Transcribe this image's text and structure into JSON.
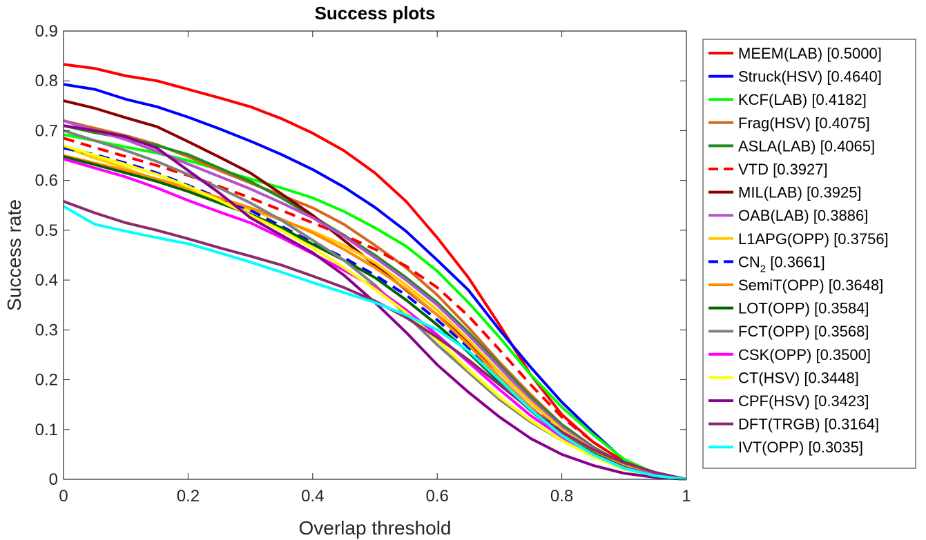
{
  "chart_data": {
    "type": "line",
    "title": "Success plots",
    "xlabel": "Overlap threshold",
    "ylabel": "Success rate",
    "xlim": [
      0,
      1
    ],
    "ylim": [
      0,
      0.9
    ],
    "xticks": [
      0,
      0.2,
      0.4,
      0.6,
      0.8,
      1
    ],
    "xtick_labels": [
      "0",
      "0.2",
      "0.4",
      "0.6",
      "0.8",
      "1"
    ],
    "yticks": [
      0,
      0.1,
      0.2,
      0.3,
      0.4,
      0.5,
      0.6,
      0.7,
      0.8,
      0.9
    ],
    "ytick_labels": [
      "0",
      "0.1",
      "0.2",
      "0.3",
      "0.4",
      "0.5",
      "0.6",
      "0.7",
      "0.8",
      "0.9"
    ],
    "grid": false,
    "legend_position": "outside-right",
    "x": [
      0,
      0.05,
      0.1,
      0.15,
      0.2,
      0.25,
      0.3,
      0.35,
      0.4,
      0.45,
      0.5,
      0.55,
      0.6,
      0.65,
      0.7,
      0.75,
      0.8,
      0.85,
      0.9,
      0.95,
      1
    ],
    "series": [
      {
        "name": "MEEM(LAB) [0.5000]",
        "color": "#ff0000",
        "dash": false,
        "values": [
          0.833,
          0.825,
          0.81,
          0.8,
          0.783,
          0.766,
          0.748,
          0.724,
          0.695,
          0.66,
          0.615,
          0.558,
          0.485,
          0.405,
          0.31,
          0.21,
          0.13,
          0.075,
          0.035,
          0.012,
          0
        ]
      },
      {
        "name": "Struck(HSV) [0.4640]",
        "color": "#0000ff",
        "dash": false,
        "values": [
          0.793,
          0.783,
          0.763,
          0.748,
          0.727,
          0.704,
          0.679,
          0.652,
          0.622,
          0.587,
          0.546,
          0.498,
          0.44,
          0.38,
          0.3,
          0.225,
          0.155,
          0.095,
          0.038,
          0.012,
          0
        ]
      },
      {
        "name": "KCF(LAB) [0.4182]",
        "color": "#00ff00",
        "dash": false,
        "values": [
          0.692,
          0.68,
          0.667,
          0.655,
          0.64,
          0.622,
          0.603,
          0.585,
          0.565,
          0.538,
          0.505,
          0.468,
          0.418,
          0.355,
          0.285,
          0.21,
          0.145,
          0.09,
          0.04,
          0.012,
          0
        ]
      },
      {
        "name": "Frag(HSV) [0.4075]",
        "color": "#d2691e",
        "dash": false,
        "values": [
          0.72,
          0.705,
          0.69,
          0.672,
          0.648,
          0.62,
          0.595,
          0.57,
          0.545,
          0.512,
          0.47,
          0.425,
          0.37,
          0.305,
          0.235,
          0.17,
          0.11,
          0.065,
          0.03,
          0.01,
          0
        ]
      },
      {
        "name": "ASLA(LAB) [0.4065]",
        "color": "#228b22",
        "dash": false,
        "values": [
          0.71,
          0.696,
          0.685,
          0.67,
          0.652,
          0.625,
          0.598,
          0.565,
          0.528,
          0.49,
          0.45,
          0.405,
          0.355,
          0.295,
          0.23,
          0.165,
          0.11,
          0.065,
          0.03,
          0.01,
          0
        ]
      },
      {
        "name": "VTD [0.3927]",
        "color": "#ff0000",
        "dash": true,
        "values": [
          0.685,
          0.666,
          0.648,
          0.63,
          0.61,
          0.588,
          0.565,
          0.54,
          0.515,
          0.49,
          0.462,
          0.428,
          0.385,
          0.328,
          0.26,
          0.19,
          0.125,
          0.075,
          0.035,
          0.012,
          0
        ]
      },
      {
        "name": "MIL(LAB) [0.3925]",
        "color": "#8b0000",
        "dash": false,
        "values": [
          0.76,
          0.745,
          0.726,
          0.708,
          0.678,
          0.647,
          0.615,
          0.573,
          0.53,
          0.48,
          0.43,
          0.38,
          0.33,
          0.275,
          0.215,
          0.155,
          0.1,
          0.06,
          0.028,
          0.01,
          0
        ]
      },
      {
        "name": "OAB(LAB) [0.3886]",
        "color": "#b452cd",
        "dash": false,
        "values": [
          0.72,
          0.7,
          0.682,
          0.658,
          0.633,
          0.608,
          0.583,
          0.555,
          0.525,
          0.488,
          0.445,
          0.4,
          0.35,
          0.29,
          0.225,
          0.16,
          0.105,
          0.062,
          0.03,
          0.01,
          0
        ]
      },
      {
        "name": "L1APG(OPP) [0.3756]",
        "color": "#ffcc00",
        "dash": false,
        "values": [
          0.668,
          0.645,
          0.625,
          0.6,
          0.58,
          0.56,
          0.54,
          0.52,
          0.498,
          0.47,
          0.435,
          0.39,
          0.34,
          0.28,
          0.215,
          0.155,
          0.1,
          0.06,
          0.028,
          0.01,
          0
        ]
      },
      {
        "name": "CN2 [0.3661]",
        "name_main": "CN",
        "name_sub": "2",
        "name_rest": " [0.3661]",
        "color": "#0000ff",
        "dash": true,
        "values": [
          0.665,
          0.652,
          0.635,
          0.615,
          0.59,
          0.565,
          0.54,
          0.508,
          0.475,
          0.445,
          0.41,
          0.37,
          0.32,
          0.265,
          0.205,
          0.145,
          0.095,
          0.055,
          0.025,
          0.008,
          0
        ]
      },
      {
        "name": "SemiT(OPP) [0.3648]",
        "color": "#ff8c00",
        "dash": false,
        "values": [
          0.65,
          0.635,
          0.62,
          0.603,
          0.585,
          0.565,
          0.545,
          0.522,
          0.495,
          0.462,
          0.425,
          0.382,
          0.33,
          0.27,
          0.205,
          0.145,
          0.092,
          0.055,
          0.025,
          0.008,
          0
        ]
      },
      {
        "name": "LOT(OPP) [0.3584]",
        "color": "#006400",
        "dash": false,
        "values": [
          0.648,
          0.632,
          0.615,
          0.598,
          0.578,
          0.555,
          0.532,
          0.505,
          0.472,
          0.44,
          0.405,
          0.36,
          0.31,
          0.255,
          0.195,
          0.138,
          0.088,
          0.052,
          0.024,
          0.008,
          0
        ]
      },
      {
        "name": "FCT(OPP) [0.3568]",
        "color": "#808080",
        "dash": false,
        "values": [
          0.7,
          0.68,
          0.66,
          0.638,
          0.612,
          0.585,
          0.555,
          0.52,
          0.48,
          0.44,
          0.39,
          0.33,
          0.27,
          0.215,
          0.16,
          0.115,
          0.078,
          0.048,
          0.022,
          0.007,
          0
        ]
      },
      {
        "name": "CSK(OPP) [0.3500]",
        "color": "#ff00ff",
        "dash": false,
        "values": [
          0.643,
          0.625,
          0.607,
          0.585,
          0.56,
          0.537,
          0.515,
          0.485,
          0.453,
          0.42,
          0.385,
          0.34,
          0.29,
          0.235,
          0.18,
          0.128,
          0.085,
          0.05,
          0.023,
          0.008,
          0
        ]
      },
      {
        "name": "CT(HSV) [0.3448]",
        "color": "#ffff00",
        "dash": false,
        "values": [
          0.67,
          0.65,
          0.632,
          0.612,
          0.588,
          0.56,
          0.53,
          0.5,
          0.465,
          0.425,
          0.382,
          0.335,
          0.28,
          0.22,
          0.165,
          0.118,
          0.078,
          0.046,
          0.02,
          0.007,
          0
        ]
      },
      {
        "name": "CPF(HSV) [0.3423]",
        "color": "#8b008b",
        "dash": false,
        "values": [
          0.71,
          0.7,
          0.688,
          0.665,
          0.62,
          0.575,
          0.525,
          0.49,
          0.455,
          0.41,
          0.355,
          0.295,
          0.23,
          0.175,
          0.125,
          0.082,
          0.05,
          0.028,
          0.012,
          0.004,
          0
        ]
      },
      {
        "name": "DFT(TRGB) [0.3164]",
        "color": "#8b2a6e",
        "dash": false,
        "values": [
          0.558,
          0.535,
          0.515,
          0.5,
          0.483,
          0.465,
          0.448,
          0.43,
          0.408,
          0.385,
          0.358,
          0.325,
          0.285,
          0.24,
          0.19,
          0.14,
          0.095,
          0.06,
          0.033,
          0.014,
          0
        ]
      },
      {
        "name": "IVT(OPP) [0.3035]",
        "color": "#00ffff",
        "dash": false,
        "values": [
          0.548,
          0.512,
          0.498,
          0.485,
          0.473,
          0.455,
          0.436,
          0.416,
          0.395,
          0.375,
          0.355,
          0.33,
          0.3,
          0.258,
          0.2,
          0.14,
          0.088,
          0.05,
          0.022,
          0.007,
          0
        ]
      }
    ]
  }
}
